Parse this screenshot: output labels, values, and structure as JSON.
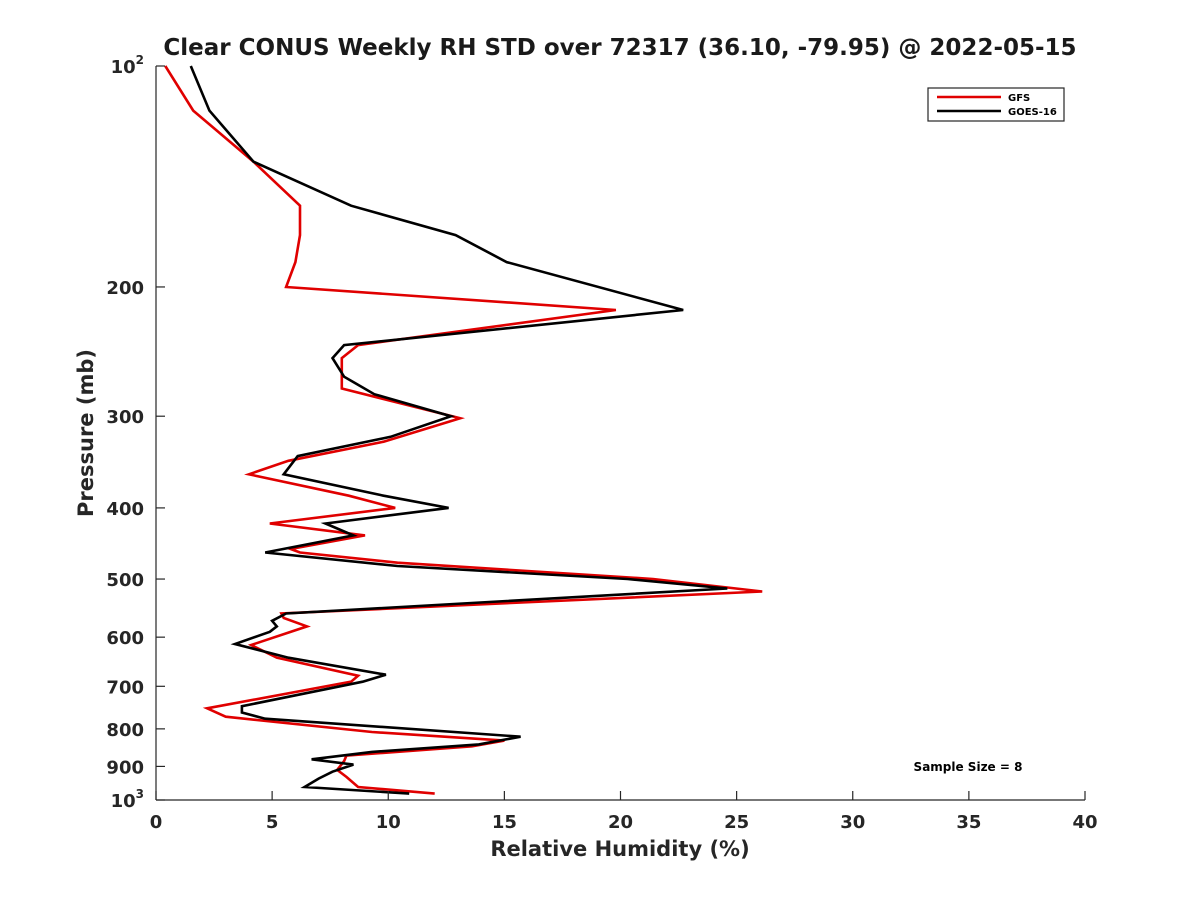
{
  "chart_data": {
    "type": "line",
    "title": "Clear CONUS Weekly RH STD over 72317 (36.10, -79.95) @ 2022-05-15",
    "xlabel": "Relative Humidity (%)",
    "ylabel": "Pressure (mb)",
    "xlim": [
      0,
      40
    ],
    "ylim": [
      100,
      1000
    ],
    "y_scale": "log",
    "y_reversed": true,
    "x_ticks": [
      "0",
      "5",
      "10",
      "15",
      "20",
      "25",
      "30",
      "35",
      "40"
    ],
    "y_ticks": [
      {
        "value": 100,
        "base": "10",
        "sup": "2"
      },
      {
        "value": 200,
        "label": "200"
      },
      {
        "value": 300,
        "label": "300"
      },
      {
        "value": 400,
        "label": "400"
      },
      {
        "value": 500,
        "label": "500"
      },
      {
        "value": 600,
        "label": "600"
      },
      {
        "value": 700,
        "label": "700"
      },
      {
        "value": 800,
        "label": "800"
      },
      {
        "value": 900,
        "label": "900"
      },
      {
        "value": 1000,
        "base": "10",
        "sup": "3"
      }
    ],
    "grid": false,
    "legend_position": "top-right",
    "series": [
      {
        "name": "GFS",
        "color": "#e00000",
        "points": [
          [
            0.4,
            100
          ],
          [
            1.6,
            115
          ],
          [
            4.2,
            135
          ],
          [
            6.2,
            155
          ],
          [
            6.2,
            170
          ],
          [
            6.0,
            185
          ],
          [
            5.6,
            200
          ],
          [
            19.8,
            215
          ],
          [
            8.7,
            240
          ],
          [
            8.0,
            250
          ],
          [
            8.0,
            275
          ],
          [
            13.1,
            302
          ],
          [
            9.8,
            325
          ],
          [
            5.7,
            345
          ],
          [
            4.0,
            360
          ],
          [
            8.3,
            385
          ],
          [
            10.3,
            400
          ],
          [
            4.9,
            420
          ],
          [
            9.0,
            436
          ],
          [
            5.8,
            455
          ],
          [
            6.2,
            460
          ],
          [
            10.4,
            475
          ],
          [
            21.4,
            500
          ],
          [
            26.1,
            520
          ],
          [
            5.4,
            557
          ],
          [
            5.5,
            565
          ],
          [
            6.5,
            580
          ],
          [
            4.1,
            615
          ],
          [
            5.2,
            640
          ],
          [
            8.7,
            677
          ],
          [
            8.4,
            690
          ],
          [
            2.2,
            750
          ],
          [
            3.0,
            770
          ],
          [
            9.3,
            808
          ],
          [
            15.0,
            830
          ],
          [
            13.6,
            845
          ],
          [
            8.2,
            870
          ],
          [
            8.1,
            885
          ],
          [
            7.8,
            910
          ],
          [
            8.2,
            930
          ],
          [
            8.7,
            960
          ],
          [
            12.0,
            980
          ]
        ]
      },
      {
        "name": "GOES-16",
        "color": "#000000",
        "points": [
          [
            1.5,
            100
          ],
          [
            2.3,
            115
          ],
          [
            4.2,
            135
          ],
          [
            8.4,
            155
          ],
          [
            12.9,
            170
          ],
          [
            15.1,
            185
          ],
          [
            22.7,
            215
          ],
          [
            8.1,
            240
          ],
          [
            7.6,
            250
          ],
          [
            8.1,
            265
          ],
          [
            9.4,
            280
          ],
          [
            12.7,
            300
          ],
          [
            10.1,
            320
          ],
          [
            6.1,
            340
          ],
          [
            5.5,
            360
          ],
          [
            9.8,
            385
          ],
          [
            12.6,
            400
          ],
          [
            7.3,
            420
          ],
          [
            8.5,
            436
          ],
          [
            4.7,
            460
          ],
          [
            10.4,
            480
          ],
          [
            20.3,
            500
          ],
          [
            24.6,
            515
          ],
          [
            5.6,
            557
          ],
          [
            5.0,
            570
          ],
          [
            5.2,
            580
          ],
          [
            4.9,
            590
          ],
          [
            3.4,
            613
          ],
          [
            5.7,
            640
          ],
          [
            9.9,
            675
          ],
          [
            8.9,
            690
          ],
          [
            3.7,
            745
          ],
          [
            3.7,
            760
          ],
          [
            4.7,
            775
          ],
          [
            15.7,
            820
          ],
          [
            13.9,
            840
          ],
          [
            9.3,
            860
          ],
          [
            6.7,
            880
          ],
          [
            8.5,
            895
          ],
          [
            7.6,
            915
          ],
          [
            7.0,
            935
          ],
          [
            6.4,
            960
          ],
          [
            10.9,
            980
          ]
        ]
      }
    ],
    "annotation": "Sample Size = 8"
  }
}
